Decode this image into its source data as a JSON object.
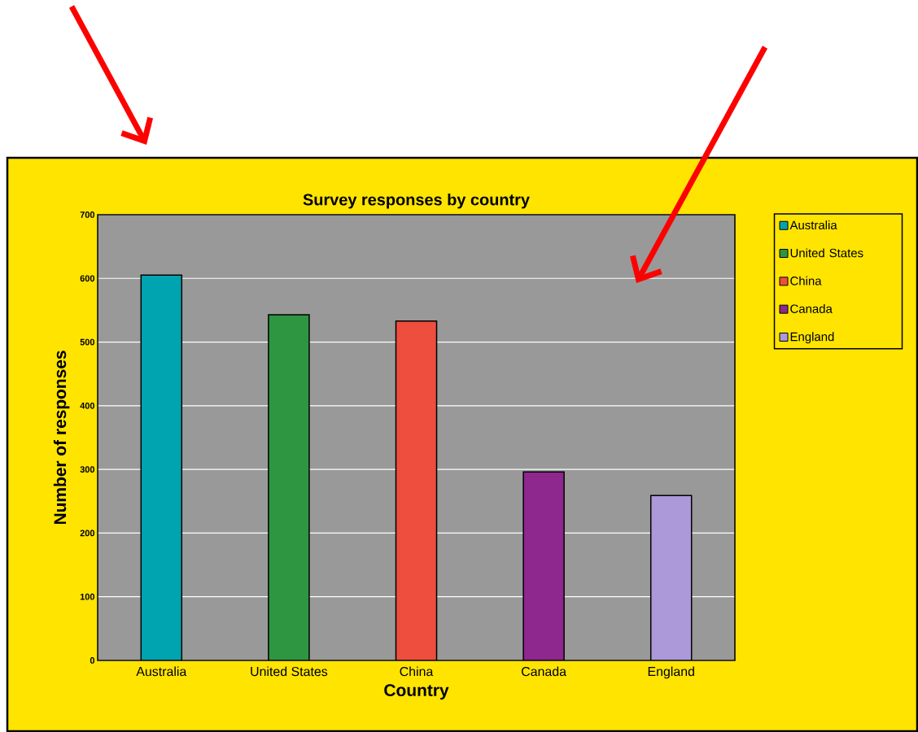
{
  "chart_data": {
    "type": "bar",
    "title": "Survey responses by country",
    "xlabel": "Country",
    "ylabel": "Number of responses",
    "categories": [
      "Australia",
      "United States",
      "China",
      "Canada",
      "England"
    ],
    "series": [
      {
        "name": "Australia",
        "color": "#00a4b0",
        "values": [
          605,
          null,
          null,
          null,
          null
        ]
      },
      {
        "name": "United States",
        "color": "#2e9641",
        "values": [
          null,
          543,
          null,
          null,
          null
        ]
      },
      {
        "name": "China",
        "color": "#ee4e3e",
        "values": [
          null,
          null,
          533,
          null,
          null
        ]
      },
      {
        "name": "Canada",
        "color": "#8e278e",
        "values": [
          null,
          null,
          null,
          296,
          null
        ]
      },
      {
        "name": "England",
        "color": "#ac99d9",
        "values": [
          null,
          null,
          null,
          null,
          259
        ]
      }
    ],
    "ylim": [
      0,
      700
    ],
    "yticks": [
      0,
      100,
      200,
      300,
      400,
      500,
      600,
      700
    ],
    "grid": "y",
    "legend": "right"
  }
}
